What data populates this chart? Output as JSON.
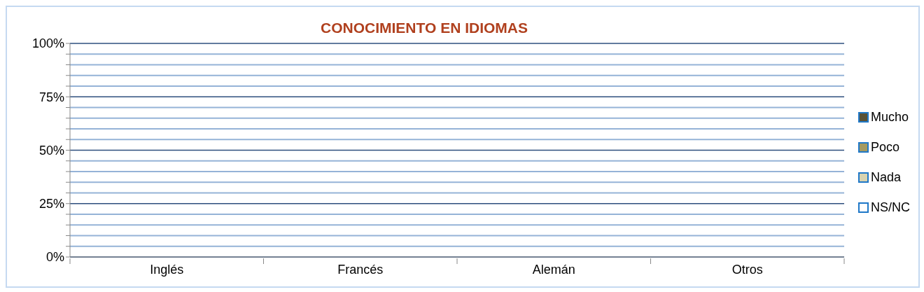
{
  "chart_data": {
    "type": "bar",
    "title": "CONOCIMIENTO EN IDIOMAS",
    "categories": [
      "Inglés",
      "Francés",
      "Alemán",
      "Otros"
    ],
    "series": [
      {
        "name": "Mucho",
        "color": "#5a5236",
        "values": [
          null,
          null,
          null,
          null
        ]
      },
      {
        "name": "Poco",
        "color": "#a59a60",
        "values": [
          null,
          null,
          null,
          null
        ]
      },
      {
        "name": "Nada",
        "color": "#d8d3b0",
        "values": [
          null,
          null,
          null,
          null
        ]
      },
      {
        "name": "NS/NC",
        "color": "#ffffff",
        "values": [
          null,
          null,
          null,
          null
        ]
      }
    ],
    "ylim": [
      0,
      100
    ],
    "yticks": [
      {
        "value": 0,
        "label": "0%"
      },
      {
        "value": 5,
        "label": null
      },
      {
        "value": 10,
        "label": null
      },
      {
        "value": 15,
        "label": null
      },
      {
        "value": 20,
        "label": null
      },
      {
        "value": 25,
        "label": "25%"
      },
      {
        "value": 30,
        "label": null
      },
      {
        "value": 35,
        "label": null
      },
      {
        "value": 40,
        "label": null
      },
      {
        "value": 45,
        "label": null
      },
      {
        "value": 50,
        "label": "50%"
      },
      {
        "value": 55,
        "label": null
      },
      {
        "value": 60,
        "label": null
      },
      {
        "value": 65,
        "label": null
      },
      {
        "value": 70,
        "label": null
      },
      {
        "value": 75,
        "label": "75%"
      },
      {
        "value": 80,
        "label": null
      },
      {
        "value": 85,
        "label": null
      },
      {
        "value": 90,
        "label": null
      },
      {
        "value": 95,
        "label": null
      },
      {
        "value": 100,
        "label": "100%"
      }
    ],
    "grid": "y",
    "legend": "right"
  }
}
